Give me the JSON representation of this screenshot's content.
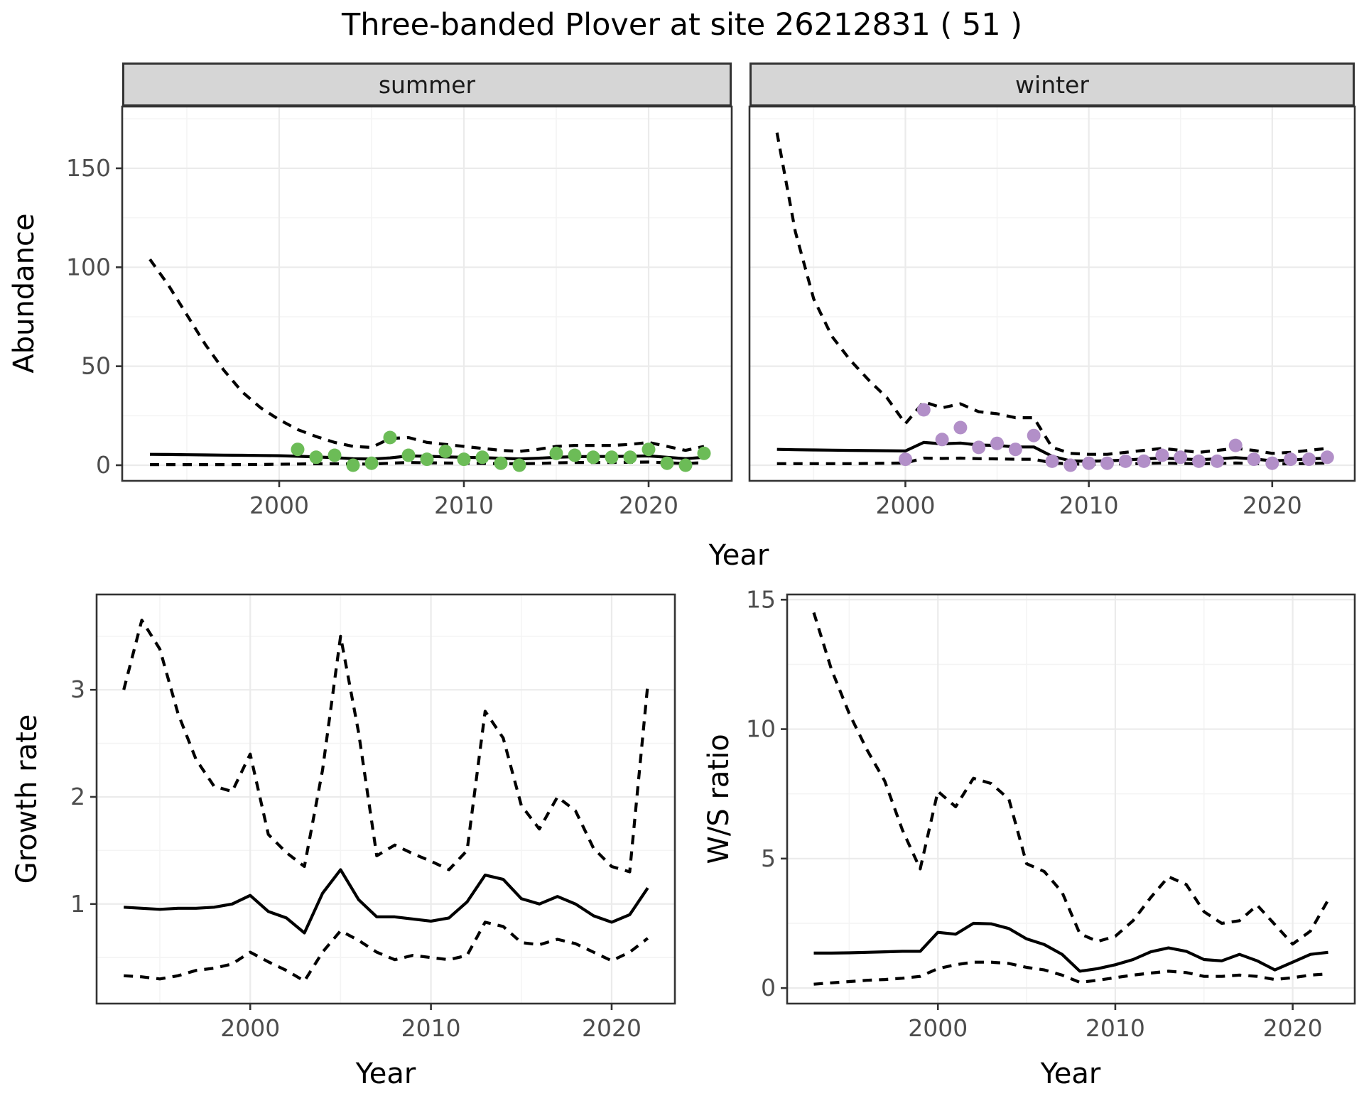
{
  "title": "Three-banded Plover at site 26212831 ( 51 )",
  "colors": {
    "summer_point": "#6CBC57",
    "winter_point": "#B28FC8",
    "line": "#000000",
    "strip_bg": "#D6D6D6",
    "strip_border": "#333333",
    "panel_border": "#333333",
    "grid_major": "#EBEBEB",
    "grid_minor": "#F4F4F4",
    "tick_label": "#4D4D4D"
  },
  "top_axis": {
    "ylabel": "Abundance",
    "xlabel": "Year"
  },
  "chart_data": [
    {
      "id": "abundance-summer",
      "type": "line",
      "facet_label": "summer",
      "ylabel": "Abundance",
      "xlabel": "Year",
      "xlim": [
        1991.5,
        2024.5
      ],
      "ylim": [
        -7.9,
        181.2
      ],
      "xticks": [
        2000,
        2010,
        2020
      ],
      "yticks": [
        0,
        50,
        100,
        150
      ],
      "xminor": [
        1995,
        2005,
        2015
      ],
      "yminor": [
        25,
        75,
        125,
        175
      ],
      "x": [
        1993,
        1994,
        1995,
        1996,
        1997,
        1998,
        1999,
        2000,
        2001,
        2002,
        2003,
        2004,
        2005,
        2006,
        2007,
        2008,
        2009,
        2010,
        2011,
        2012,
        2013,
        2014,
        2015,
        2016,
        2017,
        2018,
        2019,
        2020,
        2021,
        2022,
        2023
      ],
      "series": [
        {
          "name": "upper_ci",
          "style": "dashed",
          "values": [
            104,
            91,
            76,
            61,
            48,
            37,
            29,
            23,
            18,
            14.5,
            11.5,
            9.5,
            9,
            13.5,
            14,
            11.5,
            10.5,
            9.5,
            8.5,
            7.5,
            7,
            8,
            9.5,
            10,
            10,
            10,
            10.5,
            11.5,
            9.5,
            7.5,
            9.5
          ]
        },
        {
          "name": "lower_ci",
          "style": "dashed",
          "values": [
            0.3,
            0.3,
            0.3,
            0.3,
            0.3,
            0.3,
            0.4,
            0.5,
            0.6,
            0.7,
            0.7,
            0.6,
            0.6,
            1.0,
            1.4,
            1.2,
            1.1,
            1.0,
            0.9,
            0.8,
            0.7,
            0.9,
            1.2,
            1.4,
            1.4,
            1.4,
            1.5,
            1.6,
            1.2,
            0.9,
            1.3
          ]
        },
        {
          "name": "median",
          "style": "solid",
          "values": [
            5.5,
            5.4,
            5.3,
            5.2,
            5.1,
            5.0,
            4.9,
            4.8,
            4.5,
            4.2,
            3.8,
            3.3,
            3.1,
            3.7,
            4.7,
            4.5,
            4.2,
            4.0,
            3.8,
            3.5,
            3.2,
            3.5,
            4.0,
            4.3,
            4.4,
            4.4,
            4.5,
            4.7,
            4.0,
            3.3,
            4.0
          ]
        }
      ],
      "points": {
        "name": "observed-counts",
        "color": "#6CBC57",
        "x": [
          2001,
          2002,
          2003,
          2004,
          2005,
          2006,
          2007,
          2008,
          2009,
          2010,
          2011,
          2012,
          2013,
          2015,
          2016,
          2017,
          2018,
          2019,
          2020,
          2021,
          2022,
          2023
        ],
        "y": [
          8,
          4,
          5,
          0,
          1,
          14,
          5,
          3,
          7,
          3,
          4,
          1,
          0,
          6,
          5,
          4,
          4,
          4,
          8,
          1,
          0,
          6
        ]
      }
    },
    {
      "id": "abundance-winter",
      "type": "line",
      "facet_label": "winter",
      "ylabel": "Abundance",
      "xlabel": "Year",
      "xlim": [
        1991.5,
        2024.5
      ],
      "ylim": [
        -7.9,
        181.2
      ],
      "xticks": [
        2000,
        2010,
        2020
      ],
      "yticks": [
        0,
        50,
        100,
        150
      ],
      "xminor": [
        1995,
        2005,
        2015
      ],
      "yminor": [
        25,
        75,
        125,
        175
      ],
      "x": [
        1993,
        1994,
        1995,
        1996,
        1997,
        1998,
        1999,
        2000,
        2001,
        2002,
        2003,
        2004,
        2005,
        2006,
        2007,
        2008,
        2009,
        2010,
        2011,
        2012,
        2013,
        2014,
        2015,
        2016,
        2017,
        2018,
        2019,
        2020,
        2021,
        2022,
        2023
      ],
      "series": [
        {
          "name": "upper_ci",
          "style": "dashed",
          "values": [
            168,
            118,
            84,
            65,
            53,
            43,
            34,
            21,
            32,
            29,
            31,
            27,
            26,
            24,
            24,
            9,
            6,
            5.5,
            5.5,
            6.5,
            7.5,
            8.5,
            7.5,
            6.5,
            7.5,
            8.5,
            7.5,
            6,
            6.5,
            7.5,
            8.5
          ]
        },
        {
          "name": "lower_ci",
          "style": "dashed",
          "values": [
            0.8,
            0.8,
            0.8,
            0.8,
            0.8,
            0.9,
            1.0,
            1.1,
            3.6,
            3.4,
            3.6,
            3.3,
            3.2,
            3.0,
            3.0,
            1.2,
            0.6,
            0.5,
            0.6,
            0.7,
            0.9,
            1.1,
            0.9,
            0.8,
            0.9,
            1.1,
            0.9,
            0.6,
            0.7,
            0.9,
            1.1
          ]
        },
        {
          "name": "median",
          "style": "solid",
          "values": [
            8.0,
            7.8,
            7.7,
            7.6,
            7.5,
            7.4,
            7.3,
            7.2,
            11.5,
            10.8,
            11.2,
            10.2,
            10.0,
            9.2,
            9.2,
            4.5,
            2.2,
            2.0,
            2.2,
            2.6,
            3.2,
            3.6,
            3.2,
            2.8,
            3.2,
            3.8,
            3.2,
            2.2,
            2.6,
            3.2,
            3.6
          ]
        }
      ],
      "points": {
        "name": "observed-counts",
        "color": "#B28FC8",
        "x": [
          2000,
          2001,
          2002,
          2003,
          2004,
          2005,
          2006,
          2007,
          2008,
          2009,
          2010,
          2011,
          2012,
          2013,
          2014,
          2015,
          2016,
          2017,
          2018,
          2019,
          2020,
          2021,
          2022,
          2023
        ],
        "y": [
          3,
          28,
          13,
          19,
          9,
          11,
          8,
          15,
          2,
          0,
          1,
          1,
          2,
          2,
          5,
          4,
          2,
          2,
          10,
          3,
          1,
          3,
          3,
          4
        ]
      }
    },
    {
      "id": "growth-rate",
      "type": "line",
      "facet_label": "",
      "ylabel": "Growth rate",
      "xlabel": "Year",
      "xlim": [
        1991.5,
        2023.5
      ],
      "ylim": [
        0.07,
        3.89
      ],
      "xticks": [
        2000,
        2010,
        2020
      ],
      "yticks": [
        1,
        2,
        3
      ],
      "xminor": [
        1995,
        2005,
        2015
      ],
      "yminor": [
        0.5,
        1.5,
        2.5,
        3.5
      ],
      "x": [
        1993,
        1994,
        1995,
        1996,
        1997,
        1998,
        1999,
        2000,
        2001,
        2002,
        2003,
        2004,
        2005,
        2006,
        2007,
        2008,
        2009,
        2010,
        2011,
        2012,
        2013,
        2014,
        2015,
        2016,
        2017,
        2018,
        2019,
        2020,
        2021,
        2022
      ],
      "series": [
        {
          "name": "upper_ci",
          "style": "dashed",
          "values": [
            3.0,
            3.65,
            3.38,
            2.78,
            2.35,
            2.1,
            2.05,
            2.4,
            1.65,
            1.48,
            1.35,
            2.25,
            3.5,
            2.6,
            1.45,
            1.55,
            1.47,
            1.4,
            1.32,
            1.5,
            2.8,
            2.55,
            1.92,
            1.7,
            2.0,
            1.87,
            1.52,
            1.35,
            1.3,
            3.05
          ]
        },
        {
          "name": "lower_ci",
          "style": "dashed",
          "values": [
            0.33,
            0.32,
            0.3,
            0.33,
            0.38,
            0.4,
            0.44,
            0.55,
            0.46,
            0.38,
            0.28,
            0.55,
            0.75,
            0.66,
            0.55,
            0.48,
            0.52,
            0.5,
            0.48,
            0.52,
            0.83,
            0.79,
            0.64,
            0.62,
            0.67,
            0.63,
            0.55,
            0.47,
            0.55,
            0.68
          ]
        },
        {
          "name": "median",
          "style": "solid",
          "values": [
            0.97,
            0.96,
            0.95,
            0.96,
            0.96,
            0.97,
            1.0,
            1.08,
            0.93,
            0.87,
            0.73,
            1.1,
            1.32,
            1.04,
            0.88,
            0.88,
            0.86,
            0.84,
            0.87,
            1.02,
            1.27,
            1.23,
            1.05,
            1.0,
            1.07,
            1.0,
            0.89,
            0.83,
            0.9,
            1.15
          ]
        }
      ],
      "points": null
    },
    {
      "id": "ws-ratio",
      "type": "line",
      "facet_label": "",
      "ylabel": "W/S ratio",
      "xlabel": "Year",
      "xlim": [
        1991.5,
        2023.5
      ],
      "ylim": [
        -0.6,
        15.2
      ],
      "xticks": [
        2000,
        2010,
        2020
      ],
      "yticks": [
        0,
        5,
        10,
        15
      ],
      "xminor": [
        1995,
        2005,
        2015
      ],
      "yminor": [
        2.5,
        7.5,
        12.5
      ],
      "x": [
        1993,
        1994,
        1995,
        1996,
        1997,
        1998,
        1999,
        2000,
        2001,
        2002,
        2003,
        2004,
        2005,
        2006,
        2007,
        2008,
        2009,
        2010,
        2011,
        2012,
        2013,
        2014,
        2015,
        2016,
        2017,
        2018,
        2019,
        2020,
        2021,
        2022
      ],
      "series": [
        {
          "name": "upper_ci",
          "style": "dashed",
          "values": [
            14.5,
            12.3,
            10.6,
            9.2,
            8.0,
            6.1,
            4.6,
            7.6,
            7.0,
            8.1,
            7.9,
            7.3,
            4.8,
            4.5,
            3.7,
            2.1,
            1.8,
            2.0,
            2.6,
            3.5,
            4.3,
            4.0,
            2.95,
            2.5,
            2.6,
            3.2,
            2.45,
            1.7,
            2.2,
            3.4
          ]
        },
        {
          "name": "lower_ci",
          "style": "dashed",
          "values": [
            0.15,
            0.2,
            0.25,
            0.3,
            0.33,
            0.38,
            0.45,
            0.75,
            0.9,
            1.0,
            1.0,
            0.95,
            0.8,
            0.7,
            0.5,
            0.22,
            0.3,
            0.4,
            0.5,
            0.58,
            0.65,
            0.6,
            0.45,
            0.45,
            0.5,
            0.45,
            0.33,
            0.4,
            0.5,
            0.55
          ]
        },
        {
          "name": "median",
          "style": "solid",
          "values": [
            1.35,
            1.35,
            1.36,
            1.38,
            1.4,
            1.42,
            1.42,
            2.15,
            2.08,
            2.5,
            2.48,
            2.3,
            1.9,
            1.68,
            1.3,
            0.65,
            0.75,
            0.9,
            1.1,
            1.4,
            1.55,
            1.42,
            1.1,
            1.05,
            1.3,
            1.05,
            0.7,
            1.0,
            1.3,
            1.38
          ]
        }
      ],
      "points": null
    }
  ]
}
